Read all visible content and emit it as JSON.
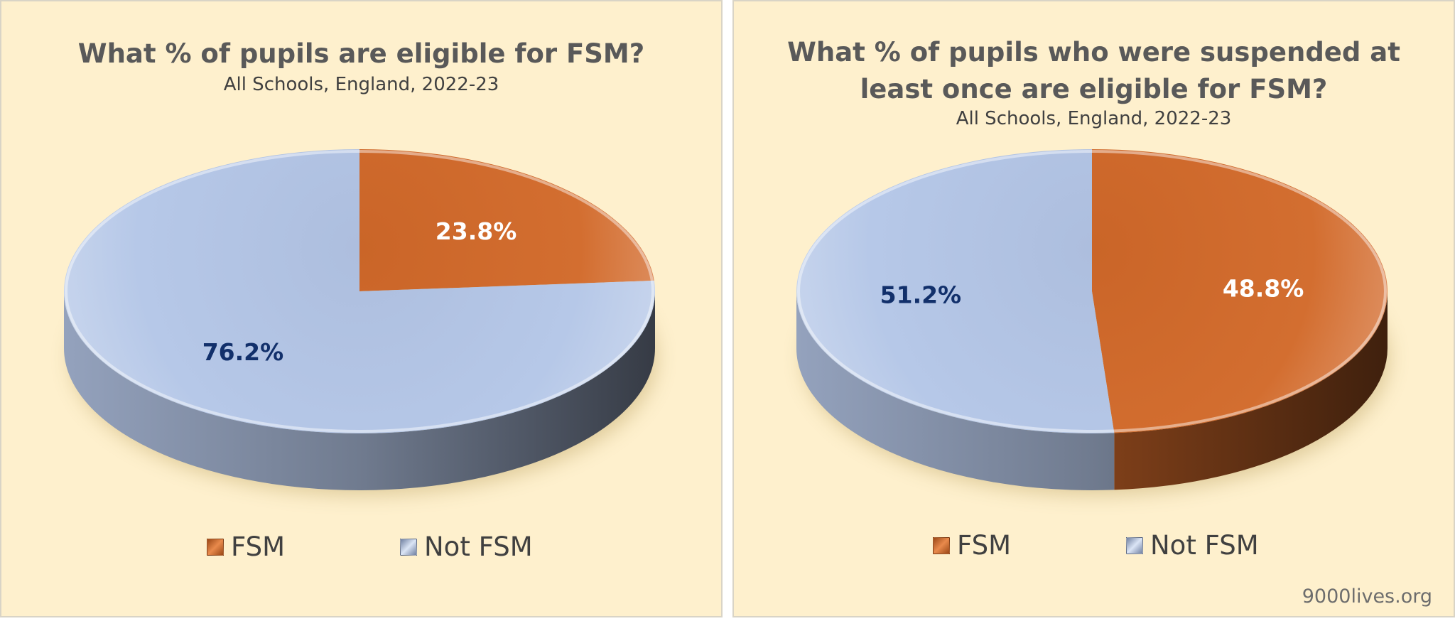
{
  "colors": {
    "fsm": "#d2692a",
    "not_fsm": "#b4c6e7",
    "fsm_label": "#ffffff",
    "not_fsm_label": "#12306b"
  },
  "charts": [
    {
      "title_lines": [
        "What % of pupils are eligible for FSM?"
      ],
      "subtitle": "All Schools, England, 2022-23",
      "legend": {
        "fsm": "FSM",
        "not_fsm": "Not FSM"
      }
    },
    {
      "title_lines": [
        "What % of pupils who were suspended at",
        "least once are eligible for FSM?"
      ],
      "subtitle": "All Schools, England, 2022-23",
      "legend": {
        "fsm": "FSM",
        "not_fsm": "Not FSM"
      }
    }
  ],
  "chart_data": [
    {
      "type": "pie",
      "title": "What % of pupils are eligible for FSM?",
      "subtitle": "All Schools, England, 2022-23",
      "categories": [
        "FSM",
        "Not FSM"
      ],
      "values": [
        23.8,
        76.2
      ],
      "labels": [
        "23.8%",
        "76.2%"
      ],
      "legend_position": "bottom"
    },
    {
      "type": "pie",
      "title": "What % of pupils who were suspended at least once are eligible for FSM?",
      "subtitle": "All Schools, England, 2022-23",
      "categories": [
        "FSM",
        "Not FSM"
      ],
      "values": [
        48.8,
        51.2
      ],
      "labels": [
        "48.8%",
        "51.2%"
      ],
      "legend_position": "bottom"
    }
  ],
  "footer": "9000lives.org"
}
